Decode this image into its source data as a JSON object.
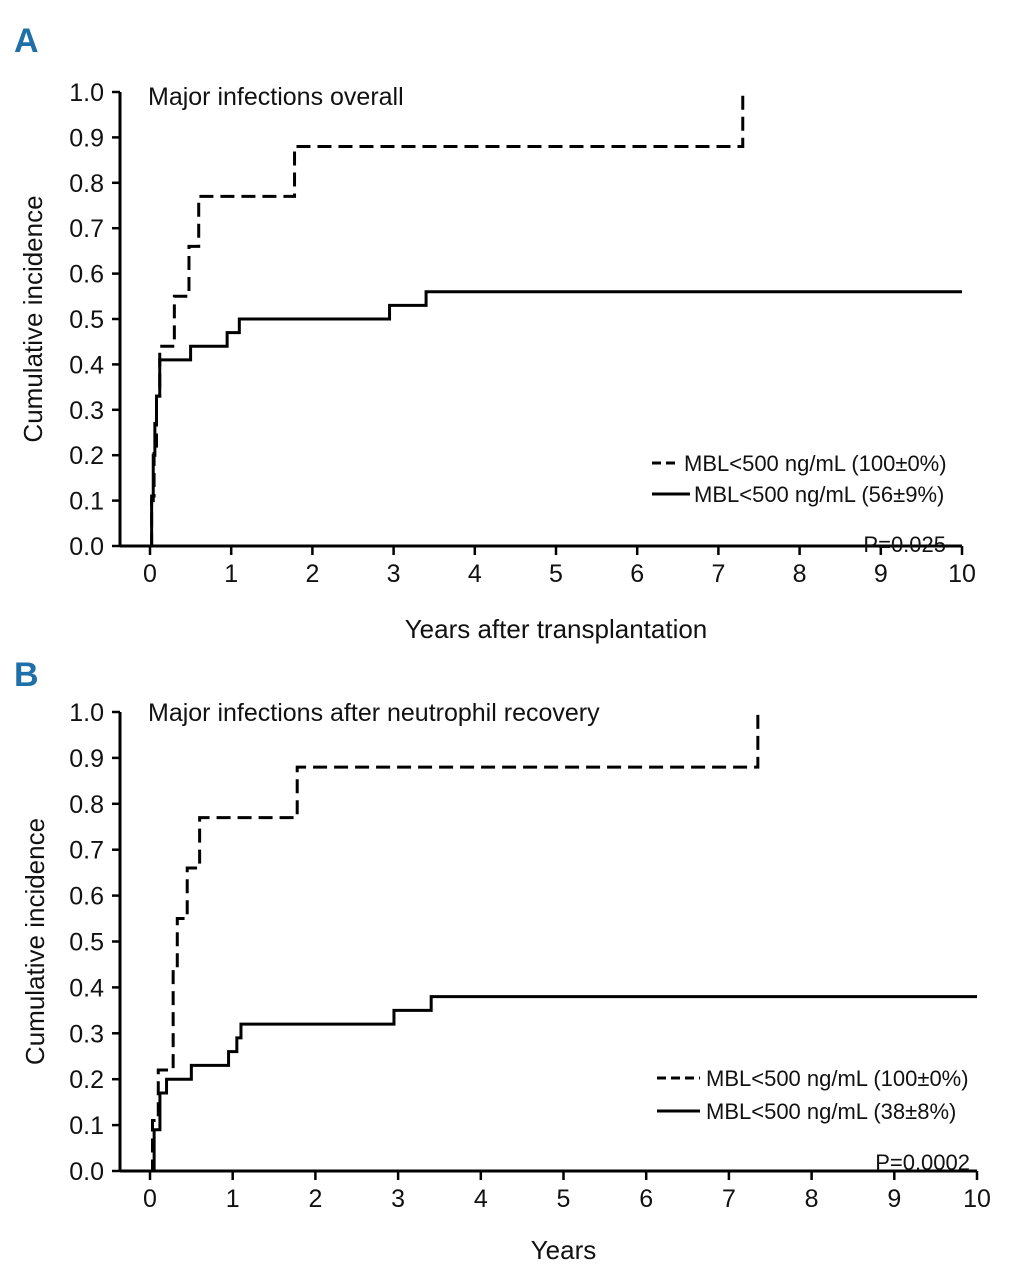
{
  "chart_data": [
    {
      "panel": "A",
      "type": "line",
      "title": "Major infections overall",
      "xlabel": "Years after transplantation",
      "ylabel": "Cumulative incidence",
      "xlim": [
        0,
        10
      ],
      "ylim": [
        0,
        1
      ],
      "x_ticks": [
        "0",
        "1",
        "2",
        "3",
        "4",
        "5",
        "6",
        "7",
        "8",
        "9",
        "10"
      ],
      "y_ticks": [
        "0.0",
        "0.1",
        "0.2",
        "0.3",
        "0.4",
        "0.5",
        "0.6",
        "0.7",
        "0.8",
        "0.9",
        "1.0"
      ],
      "p_value": "P=0.025",
      "series": [
        {
          "name": "MBL<500 ng/mL (100±0%)",
          "style": "dashed",
          "steps": [
            [
              0,
              0
            ],
            [
              0.02,
              0.11
            ],
            [
              0.05,
              0.22
            ],
            [
              0.08,
              0.33
            ],
            [
              0.12,
              0.44
            ],
            [
              0.3,
              0.55
            ],
            [
              0.48,
              0.66
            ],
            [
              0.6,
              0.77
            ],
            [
              1.78,
              0.88
            ],
            [
              7.3,
              1.0
            ]
          ]
        },
        {
          "name": "MBL<500 ng/mL (56±9%)",
          "style": "solid",
          "steps": [
            [
              0,
              0
            ],
            [
              0.02,
              0.1
            ],
            [
              0.04,
              0.2
            ],
            [
              0.06,
              0.27
            ],
            [
              0.08,
              0.33
            ],
            [
              0.12,
              0.41
            ],
            [
              0.5,
              0.44
            ],
            [
              0.95,
              0.47
            ],
            [
              1.1,
              0.5
            ],
            [
              2.95,
              0.53
            ],
            [
              3.4,
              0.56
            ],
            [
              10,
              0.56
            ]
          ]
        }
      ]
    },
    {
      "panel": "B",
      "type": "line",
      "title": "Major infections after neutrophil recovery",
      "xlabel": "Years",
      "ylabel": "Cumulative incidence",
      "xlim": [
        0,
        10
      ],
      "ylim": [
        0,
        1
      ],
      "x_ticks": [
        "0",
        "1",
        "2",
        "3",
        "4",
        "5",
        "6",
        "7",
        "8",
        "9",
        "10"
      ],
      "y_ticks": [
        "0.0",
        "0.1",
        "0.2",
        "0.3",
        "0.4",
        "0.5",
        "0.6",
        "0.7",
        "0.8",
        "0.9",
        "1.0"
      ],
      "p_value": "P=0.0002",
      "series": [
        {
          "name": "MBL<500 ng/mL (100±0%)",
          "style": "dashed",
          "steps": [
            [
              0,
              0
            ],
            [
              0.03,
              0.11
            ],
            [
              0.1,
              0.22
            ],
            [
              0.28,
              0.44
            ],
            [
              0.33,
              0.55
            ],
            [
              0.45,
              0.66
            ],
            [
              0.6,
              0.77
            ],
            [
              1.78,
              0.88
            ],
            [
              7.35,
              1.0
            ]
          ]
        },
        {
          "name": "MBL<500 ng/mL (38±8%)",
          "style": "solid",
          "steps": [
            [
              0,
              0
            ],
            [
              0.05,
              0.09
            ],
            [
              0.12,
              0.17
            ],
            [
              0.2,
              0.2
            ],
            [
              0.5,
              0.23
            ],
            [
              0.95,
              0.26
            ],
            [
              1.05,
              0.29
            ],
            [
              1.1,
              0.32
            ],
            [
              2.95,
              0.35
            ],
            [
              3.4,
              0.38
            ],
            [
              10,
              0.38
            ]
          ]
        }
      ]
    }
  ]
}
